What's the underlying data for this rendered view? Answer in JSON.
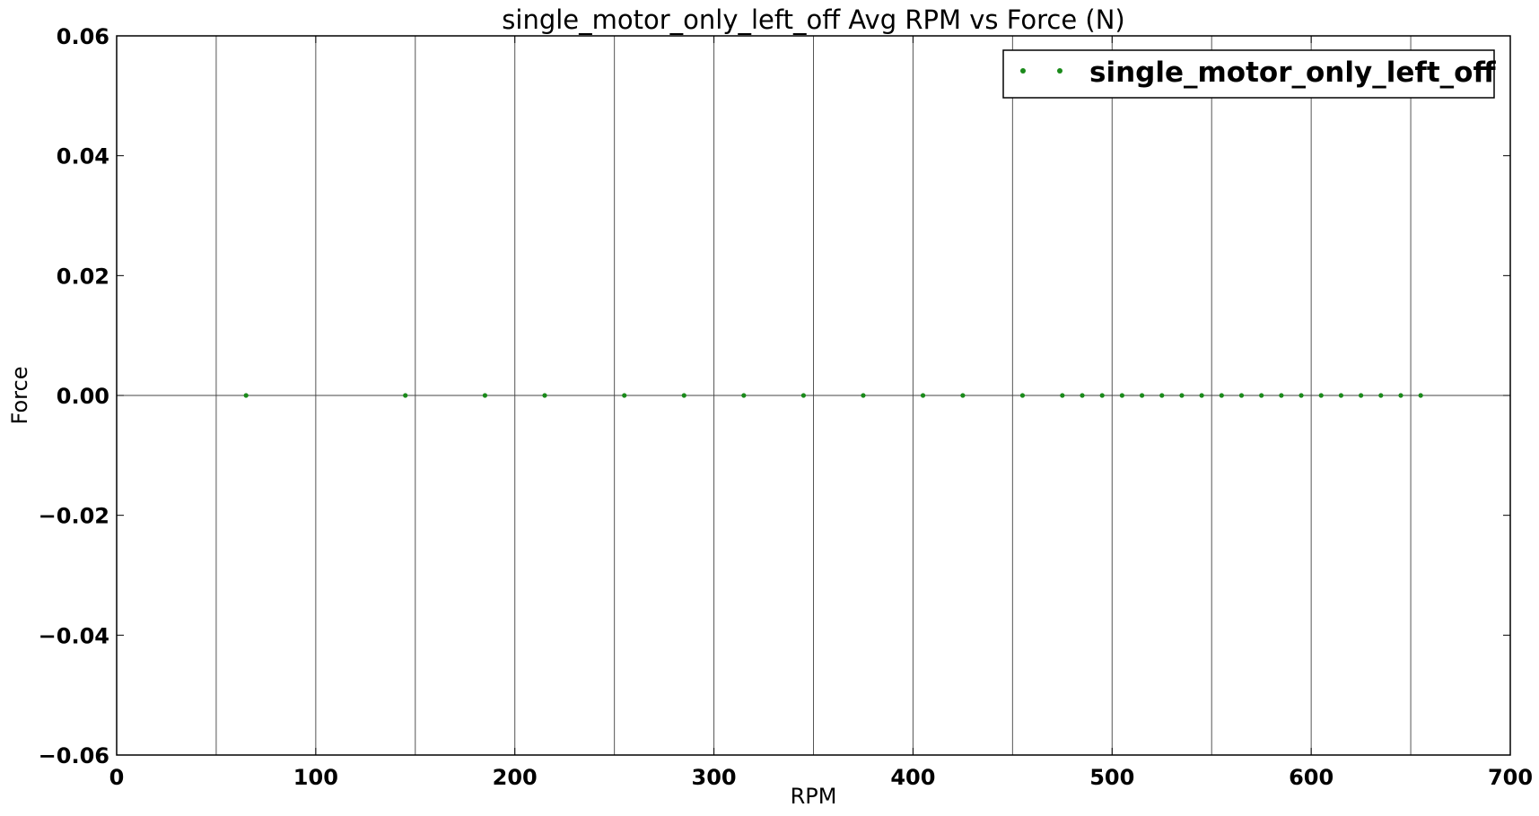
{
  "chart_data": {
    "type": "scatter",
    "title": "single_motor_only_left_off Avg RPM vs Force (N)",
    "xlabel": "RPM",
    "ylabel": "Force",
    "xlim": [
      0,
      700
    ],
    "ylim": [
      -0.06,
      0.06
    ],
    "x_ticks": [
      0,
      100,
      200,
      300,
      400,
      500,
      600,
      700
    ],
    "x_tick_labels": [
      "0",
      "100",
      "200",
      "300",
      "400",
      "500",
      "600",
      "700"
    ],
    "y_ticks": [
      0.06,
      0.04,
      0.02,
      0.0,
      -0.02,
      -0.04,
      -0.06
    ],
    "y_tick_labels": [
      "0.06",
      "0.04",
      "0.02",
      "0.00",
      "−0.02",
      "−0.04",
      "−0.06"
    ],
    "x_grid_lines": [
      50,
      100,
      150,
      200,
      250,
      300,
      350,
      400,
      450,
      500,
      550,
      600,
      650
    ],
    "grid": true,
    "legend_position": "top-right",
    "series": [
      {
        "name": "single_motor_only_left_off",
        "color": "#1a8a1a",
        "marker": "point",
        "x": [
          65,
          145,
          185,
          215,
          255,
          285,
          315,
          345,
          375,
          405,
          425,
          455,
          475,
          485,
          495,
          505,
          515,
          525,
          535,
          545,
          555,
          565,
          575,
          585,
          595,
          605,
          615,
          625,
          635,
          645,
          655
        ],
        "y": [
          0,
          0,
          0,
          0,
          0,
          0,
          0,
          0,
          0,
          0,
          0,
          0,
          0,
          0,
          0,
          0,
          0,
          0,
          0,
          0,
          0,
          0,
          0,
          0,
          0,
          0,
          0,
          0,
          0,
          0,
          0
        ]
      }
    ]
  }
}
